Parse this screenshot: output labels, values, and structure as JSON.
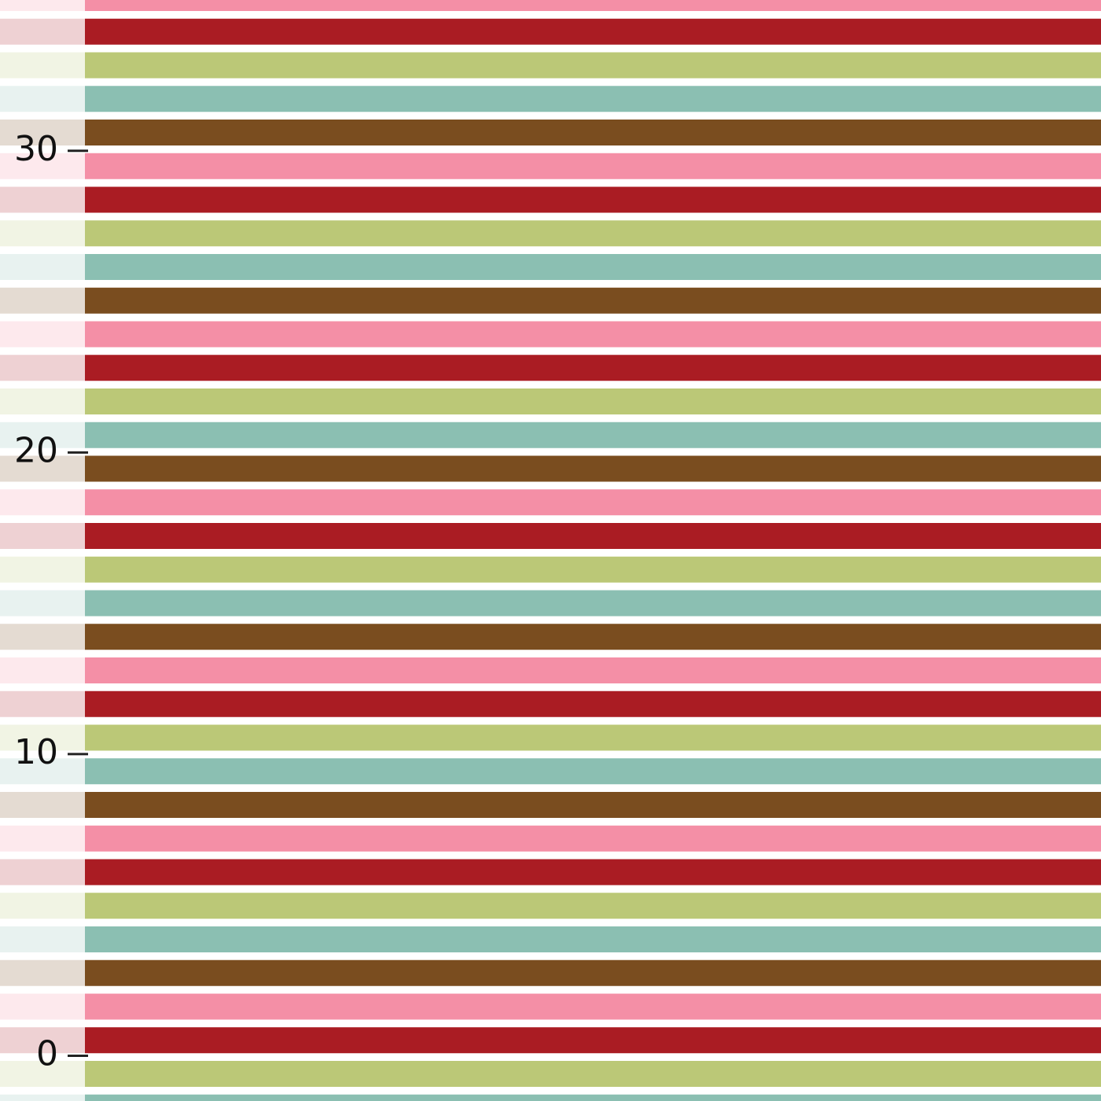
{
  "chart_data": {
    "type": "stripes",
    "stripe_colors": [
      "#f48fa6",
      "#aa1c23",
      "#bbc877",
      "#8bbfb2",
      "#7a4d1f"
    ],
    "ylim": [
      -1.5,
      35
    ],
    "yticks": [
      0,
      10,
      20,
      30
    ]
  }
}
